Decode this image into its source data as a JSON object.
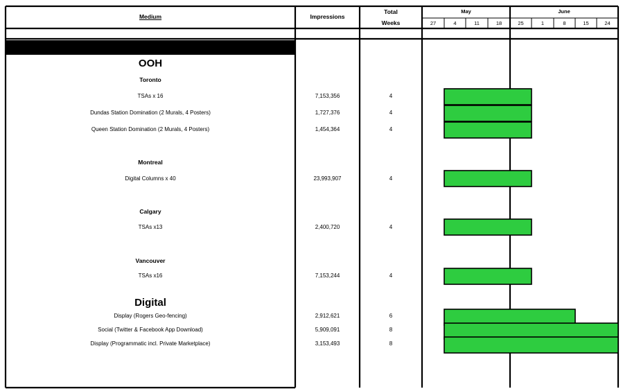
{
  "header": {
    "medium": "Medium",
    "impressions": "Impressions",
    "total_weeks_line1": "Total",
    "total_weeks_line2": "Weeks",
    "months": [
      "May",
      "June"
    ],
    "weeks": [
      "27",
      "4",
      "11",
      "18",
      "25",
      "1",
      "8",
      "15",
      "24"
    ]
  },
  "colors": {
    "bar": "#2ecc40",
    "black_band": "#000000"
  },
  "chart_data": {
    "type": "table",
    "timeline": {
      "weeks": [
        "27",
        "4",
        "11",
        "18",
        "25",
        "1",
        "8",
        "15",
        "24"
      ],
      "months": [
        {
          "name": "May",
          "first_week_index": 0,
          "week_count": 4
        },
        {
          "name": "June",
          "first_week_index": 4,
          "week_count": 5
        }
      ]
    },
    "sections": [
      {
        "title": "OOH",
        "groups": [
          {
            "city": "Toronto",
            "rows": [
              {
                "medium": "TSAs x 16",
                "impressions": "7,153,356",
                "weeks": "4",
                "start_index": 1,
                "duration": 4
              },
              {
                "medium": "Dundas Station Domination (2 Murals, 4 Posters)",
                "impressions": "1,727,376",
                "weeks": "4",
                "start_index": 1,
                "duration": 4
              },
              {
                "medium": "Queen Station Domination (2 Murals, 4 Posters)",
                "impressions": "1,454,364",
                "weeks": "4",
                "start_index": 1,
                "duration": 4
              }
            ]
          },
          {
            "city": "Montreal",
            "rows": [
              {
                "medium": "Digital Columns x 40",
                "impressions": "23,993,907",
                "weeks": "4",
                "start_index": 1,
                "duration": 4
              }
            ]
          },
          {
            "city": "Calgary",
            "rows": [
              {
                "medium": "TSAs x13",
                "impressions": "2,400,720",
                "weeks": "4",
                "start_index": 1,
                "duration": 4
              }
            ]
          },
          {
            "city": "Vancouver",
            "rows": [
              {
                "medium": "TSAs x16",
                "impressions": "7,153,244",
                "weeks": "4",
                "start_index": 1,
                "duration": 4
              }
            ]
          }
        ]
      },
      {
        "title": "Digital",
        "groups": [
          {
            "city": "",
            "rows": [
              {
                "medium": "Display (Rogers Geo-fencing)",
                "impressions": "2,912,621",
                "weeks": "6",
                "start_index": 1,
                "duration": 6
              },
              {
                "medium": "Social (Twitter & Facebook App Download)",
                "impressions": "5,909,091",
                "weeks": "8",
                "start_index": 1,
                "duration": 8
              },
              {
                "medium": "Display (Programmatic incl. Private Marketplace)",
                "impressions": "3,153,493",
                "weeks": "8",
                "start_index": 1,
                "duration": 8
              }
            ]
          }
        ]
      }
    ]
  }
}
